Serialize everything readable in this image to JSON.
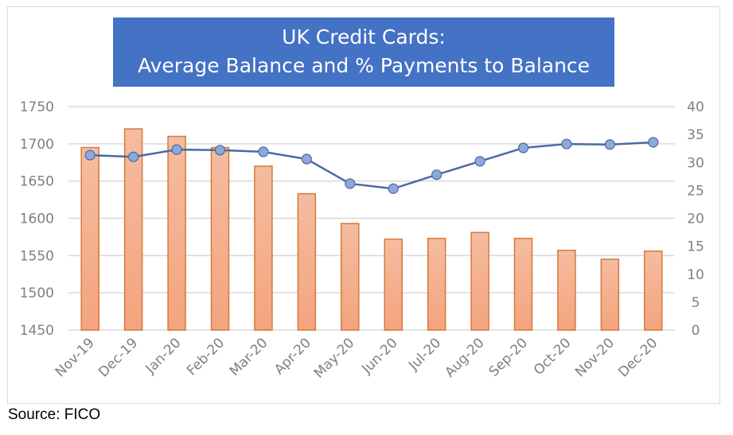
{
  "chart_data": {
    "type": "bar+line",
    "title": "UK Credit Cards:\nAverage Balance and % Payments to Balance",
    "title_lines": [
      "UK Credit Cards:",
      "Average Balance and % Payments to Balance"
    ],
    "categories": [
      "Nov-19",
      "Dec-19",
      "Jan-20",
      "Feb-20",
      "Mar-20",
      "Apr-20",
      "May-20",
      "Jun-20",
      "Jul-20",
      "Aug-20",
      "Sep-20",
      "Oct-20",
      "Nov-20",
      "Dec-20"
    ],
    "series": [
      {
        "name": "Average Balance",
        "type": "bar",
        "axis": "left",
        "color": "#f4b183",
        "border": "#d47a3a",
        "values": [
          1695,
          1720,
          1710,
          1695,
          1670,
          1633,
          1593,
          1572,
          1573,
          1581,
          1573,
          1557,
          1545,
          1556
        ]
      },
      {
        "name": "% Payments to Balance",
        "type": "line",
        "axis": "right",
        "color": "#4a6aa5",
        "marker": "#8fa8dc",
        "values": [
          31.3,
          31.0,
          32.3,
          32.2,
          31.9,
          30.6,
          26.2,
          25.3,
          27.8,
          30.2,
          32.6,
          33.3,
          33.2,
          33.6
        ]
      }
    ],
    "left_axis": {
      "ticks": [
        1450,
        1500,
        1550,
        1600,
        1650,
        1700,
        1750
      ],
      "ylim": [
        1450,
        1750
      ]
    },
    "right_axis": {
      "ticks": [
        0,
        5,
        10,
        15,
        20,
        25,
        30,
        35,
        40
      ],
      "ylim": [
        0,
        40
      ]
    },
    "xlabel": "",
    "ylabel": "",
    "grid": true,
    "legend": "none"
  },
  "source": "Source: FICO"
}
